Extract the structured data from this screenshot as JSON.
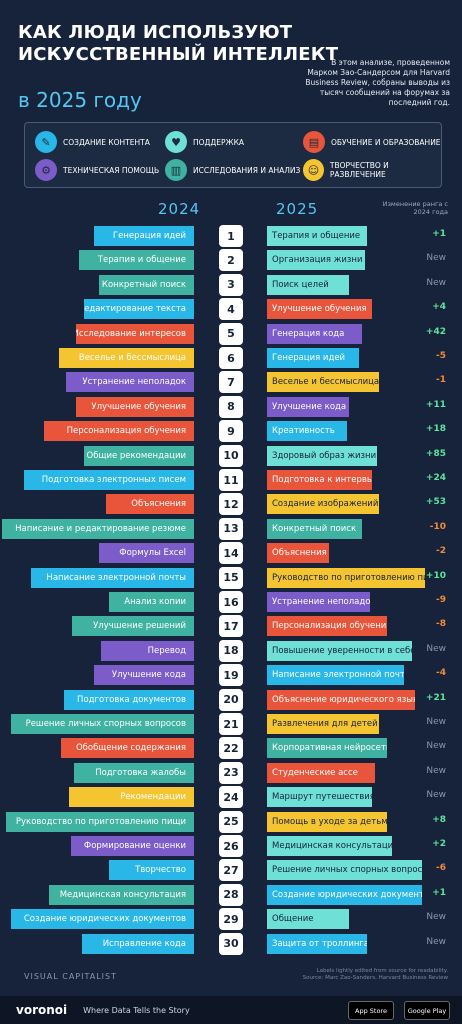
{
  "header": {
    "title_line1": "КАК ЛЮДИ ИСПОЛЬЗУЮТ",
    "title_line2": "ИСКУССТВЕННЫЙ ИНТЕЛЛЕКТ",
    "year": "в 2025 году",
    "intro": "В этом анализе, проведенном Марком Зао-Сандерсом для Harvard Business Review, собраны выводы из тысяч сообщений на форумах за последний год."
  },
  "legend": [
    {
      "label": "СОЗДАНИЕ КОНТЕНТА",
      "color": "#29b7e8",
      "icon": "pen-icon",
      "glyph": "✎"
    },
    {
      "label": "ПОДДЕРЖКА",
      "color": "#6fe0d6",
      "icon": "handshake-icon",
      "glyph": "♥"
    },
    {
      "label": "ОБУЧЕНИЕ И ОБРАЗОВАНИЕ",
      "color": "#e8553a",
      "icon": "book-icon",
      "glyph": "▤"
    },
    {
      "label": "ТЕХНИЧЕСКАЯ ПОМОЩЬ",
      "color": "#7b5cc8",
      "icon": "tech-icon",
      "glyph": "⚙"
    },
    {
      "label": "ИССЛЕДОВАНИЯ И АНАЛИЗ",
      "color": "#3fb2a2",
      "icon": "chart-icon",
      "glyph": "▥"
    },
    {
      "label": "ТВОРЧЕСТВО И РАЗВЛЕЧЕНИЕ",
      "color": "#f5c431",
      "icon": "palette-icon",
      "glyph": "☺"
    }
  ],
  "columns": {
    "left": "2024",
    "right": "2025",
    "rank_change": "Изменение ранга с 2024 года"
  },
  "chart_data": {
    "type": "table",
    "ranks": [
      1,
      2,
      3,
      4,
      5,
      6,
      7,
      8,
      9,
      10,
      11,
      12,
      13,
      14,
      15,
      16,
      17,
      18,
      19,
      20,
      21,
      22,
      23,
      24,
      25,
      26,
      27,
      28,
      29,
      30
    ],
    "uses_2024": [
      {
        "label": "Генерация идей",
        "color": "#29b7e8",
        "w": 100
      },
      {
        "label": "Терапия и общение",
        "color": "#3fb2a2",
        "w": 115
      },
      {
        "label": "Конкретный поиск",
        "color": "#3fb2a2",
        "w": 95
      },
      {
        "label": "Редактирование текста",
        "color": "#29b7e8",
        "w": 110
      },
      {
        "label": "Исследование интересов",
        "color": "#e8553a",
        "w": 118
      },
      {
        "label": "Веселье и бессмыслица",
        "color": "#f5c431",
        "w": 135
      },
      {
        "label": "Устранение неполадок",
        "color": "#7b5cc8",
        "w": 128
      },
      {
        "label": "Улучшение обучения",
        "color": "#e8553a",
        "w": 118
      },
      {
        "label": "Персонализация обучения",
        "color": "#e8553a",
        "w": 150
      },
      {
        "label": "Общие рекомендации",
        "color": "#3fb2a2",
        "w": 110
      },
      {
        "label": "Подготовка электронных писем",
        "color": "#29b7e8",
        "w": 170
      },
      {
        "label": "Объяснения",
        "color": "#e8553a",
        "w": 88
      },
      {
        "label": "Написание и редактирование резюме",
        "color": "#3fb2a2",
        "w": 192
      },
      {
        "label": "Формулы Excel",
        "color": "#7b5cc8",
        "w": 95
      },
      {
        "label": "Написание электронной почты",
        "color": "#29b7e8",
        "w": 163
      },
      {
        "label": "Анализ копии",
        "color": "#3fb2a2",
        "w": 85
      },
      {
        "label": "Улучшение решений",
        "color": "#3fb2a2",
        "w": 122
      },
      {
        "label": "Перевод",
        "color": "#7b5cc8",
        "w": 93
      },
      {
        "label": "Улучшение кода",
        "color": "#7b5cc8",
        "w": 100
      },
      {
        "label": "Подготовка документов",
        "color": "#29b7e8",
        "w": 130
      },
      {
        "label": "Решение личных спорных вопросов",
        "color": "#3fb2a2",
        "w": 183
      },
      {
        "label": "Обобщение содержания",
        "color": "#e8553a",
        "w": 133
      },
      {
        "label": "Подготовка жалобы",
        "color": "#3fb2a2",
        "w": 120
      },
      {
        "label": "Рекомендации",
        "color": "#f5c431",
        "w": 125
      },
      {
        "label": "Руководство по приготовлению пищи",
        "color": "#3fb2a2",
        "w": 188
      },
      {
        "label": "Формирование оценки",
        "color": "#7b5cc8",
        "w": 123
      },
      {
        "label": "Творчество",
        "color": "#29b7e8",
        "w": 85
      },
      {
        "label": "Медицинская консультация",
        "color": "#3fb2a2",
        "w": 145
      },
      {
        "label": "Создание юридических документов",
        "color": "#29b7e8",
        "w": 183
      },
      {
        "label": "Исправление кода",
        "color": "#29b7e8",
        "w": 112
      }
    ],
    "uses_2025": [
      {
        "label": "Терапия и общение",
        "color": "#6fe0d6",
        "w": 100,
        "change": "+1"
      },
      {
        "label": "Организация жизни",
        "color": "#6fe0d6",
        "w": 98,
        "change": "New"
      },
      {
        "label": "Поиск целей",
        "color": "#6fe0d6",
        "w": 82,
        "change": "New"
      },
      {
        "label": "Улучшение обучения",
        "color": "#e8553a",
        "w": 105,
        "change": "+4"
      },
      {
        "label": "Генерация кода",
        "color": "#7b5cc8",
        "w": 95,
        "change": "+42"
      },
      {
        "label": "Генерация идей",
        "color": "#29b7e8",
        "w": 92,
        "change": "-5"
      },
      {
        "label": "Веселье и бессмыслица",
        "color": "#f5c431",
        "w": 112,
        "change": "-1"
      },
      {
        "label": "Улучшение кода",
        "color": "#7b5cc8",
        "w": 82,
        "change": "+11"
      },
      {
        "label": "Креативность",
        "color": "#29b7e8",
        "w": 80,
        "change": "+18"
      },
      {
        "label": "Здоровый образ жизни",
        "color": "#6fe0d6",
        "w": 110,
        "change": "+85"
      },
      {
        "label": "Подготовка к интервью",
        "color": "#e8553a",
        "w": 105,
        "change": "+24"
      },
      {
        "label": "Создание изображений",
        "color": "#f5c431",
        "w": 112,
        "change": "+53"
      },
      {
        "label": "Конкретный поиск",
        "color": "#3fb2a2",
        "w": 95,
        "change": "-10"
      },
      {
        "label": "Объяснения",
        "color": "#e8553a",
        "w": 62,
        "change": "-2"
      },
      {
        "label": "Руководство по приготовлению пищи",
        "color": "#f5c431",
        "w": 158,
        "change": "+10"
      },
      {
        "label": "Устранение неполадок",
        "color": "#7b5cc8",
        "w": 103,
        "change": "-9"
      },
      {
        "label": "Персонализация обучения",
        "color": "#e8553a",
        "w": 120,
        "change": "-8"
      },
      {
        "label": "Повышение уверенности в себе",
        "color": "#6fe0d6",
        "w": 145,
        "change": "New"
      },
      {
        "label": "Написание электронной почты",
        "color": "#29b7e8",
        "w": 137,
        "change": "-4"
      },
      {
        "label": "Объяснение юридического языка",
        "color": "#e8553a",
        "w": 148,
        "change": "+21"
      },
      {
        "label": "Развлечения для детей",
        "color": "#f5c431",
        "w": 112,
        "change": "New"
      },
      {
        "label": "Корпоративная нейросеть",
        "color": "#3fb2a2",
        "w": 120,
        "change": "New"
      },
      {
        "label": "Студенческие ассе",
        "color": "#e8553a",
        "w": 108,
        "change": "New"
      },
      {
        "label": "Маршрут путешествия",
        "color": "#6fe0d6",
        "w": 105,
        "change": "New"
      },
      {
        "label": "Помощь в уходе за детьми",
        "color": "#f5c431",
        "w": 120,
        "change": "+8"
      },
      {
        "label": "Медицинская консультация",
        "color": "#6fe0d6",
        "w": 125,
        "change": "+2"
      },
      {
        "label": "Решение личных спорных вопросов",
        "color": "#6fe0d6",
        "w": 155,
        "change": "-6"
      },
      {
        "label": "Создание юридических документов",
        "color": "#29b7e8",
        "w": 155,
        "change": "+1"
      },
      {
        "label": "Общение",
        "color": "#6fe0d6",
        "w": 82,
        "change": "New"
      },
      {
        "label": "Защита от троллинга",
        "color": "#29b7e8",
        "w": 100,
        "change": "New"
      }
    ]
  },
  "footer": {
    "source": "VISUAL CAPITALIST",
    "note": "Labels lightly edited from source for readability. Source: Marc Zao-Sanders, Harvard Business Review",
    "logo": "voronoi",
    "tagline": "Where Data Tells the Story",
    "app_store": "App Store",
    "google_play": "Google Play"
  }
}
